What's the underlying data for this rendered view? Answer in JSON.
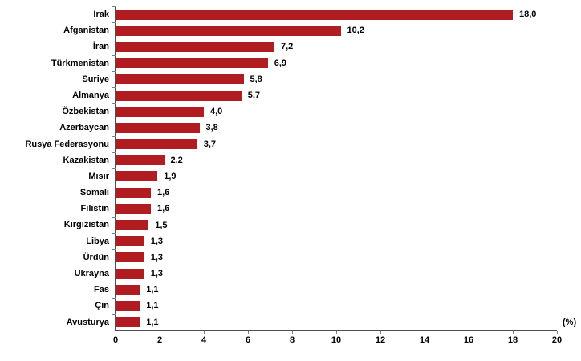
{
  "chart_data": {
    "type": "bar",
    "orientation": "horizontal",
    "title": "",
    "xlabel": "(%)",
    "ylabel": "",
    "xlim": [
      0,
      20
    ],
    "x_ticks": [
      0,
      2,
      4,
      6,
      8,
      10,
      12,
      14,
      16,
      18,
      20
    ],
    "grid": false,
    "legend": null,
    "bar_color": "#b01c20",
    "axis_color": "#4d4d4d",
    "tick_color": "#7f7f7f",
    "label_color": "#000000",
    "categories": [
      "Irak",
      "Afganistan",
      "İran",
      "Türkmenistan",
      "Suriye",
      "Almanya",
      "Özbekistan",
      "Azerbaycan",
      "Rusya Federasyonu",
      "Kazakistan",
      "Mısır",
      "Somali",
      "Filistin",
      "Kırgızistan",
      "Libya",
      "Ürdün",
      "Ukrayna",
      "Fas",
      "Çin",
      "Avusturya"
    ],
    "values": [
      18.0,
      10.2,
      7.2,
      6.9,
      5.8,
      5.7,
      4.0,
      3.8,
      3.7,
      2.2,
      1.9,
      1.6,
      1.6,
      1.5,
      1.3,
      1.3,
      1.3,
      1.1,
      1.1,
      1.1
    ],
    "value_labels": [
      "18,0",
      "10,2",
      "7,2",
      "6,9",
      "5,8",
      "5,7",
      "4,0",
      "3,8",
      "3,7",
      "2,2",
      "1,9",
      "1,6",
      "1,6",
      "1,5",
      "1,3",
      "1,3",
      "1,3",
      "1,1",
      "1,1",
      "1,1"
    ]
  }
}
